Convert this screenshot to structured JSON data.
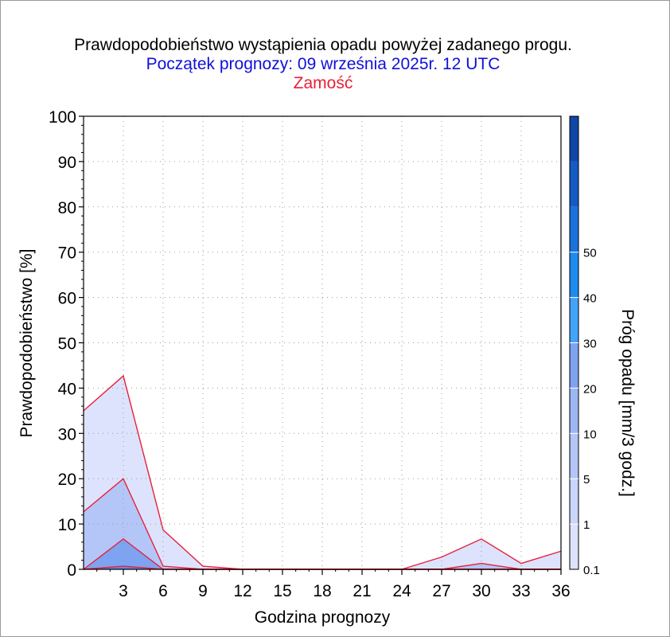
{
  "header": {
    "title": "Prawdopodobieństwo wystąpienia opadu powyżej zadanego progu.",
    "subtitle": "Początek prognozy: 09 września 2025r. 12 UTC",
    "location": "Zamość",
    "title_color": "#000000",
    "subtitle_color": "#1010d8",
    "location_color": "#e8203a"
  },
  "chart_data": {
    "type": "area",
    "xlabel": "Godzina prognozy",
    "ylabel": "Prawdopodobieństwo [%]",
    "xlim": [
      0,
      36
    ],
    "ylim": [
      0,
      100
    ],
    "x": [
      0,
      3,
      6,
      9,
      12,
      15,
      18,
      21,
      24,
      27,
      30,
      33,
      36
    ],
    "x_tick_labels": [
      "3",
      "6",
      "9",
      "12",
      "15",
      "18",
      "21",
      "24",
      "27",
      "30",
      "33",
      "36"
    ],
    "x_tick_values": [
      3,
      6,
      9,
      12,
      15,
      18,
      21,
      24,
      27,
      30,
      33,
      36
    ],
    "y_ticks": [
      0,
      10,
      20,
      30,
      40,
      50,
      60,
      70,
      80,
      90,
      100
    ],
    "grid": true,
    "series": [
      {
        "threshold": 0.1,
        "color": "#dde3fc",
        "values": [
          35,
          42.7,
          8.7,
          0.7,
          0,
          0,
          0,
          0,
          0,
          2.7,
          6.7,
          1.3,
          4
        ]
      },
      {
        "threshold": 1,
        "color": "#b4c6f8",
        "values": [
          12.7,
          20,
          0.7,
          0,
          0,
          0,
          0,
          0,
          0,
          0,
          1.3,
          0,
          0
        ]
      },
      {
        "threshold": 5,
        "color": "#7ea3f0",
        "values": [
          0,
          6.7,
          0,
          0,
          0,
          0,
          0,
          0,
          0,
          0,
          0,
          0,
          0
        ]
      },
      {
        "threshold": 10,
        "color": "#5b8de8",
        "values": [
          0,
          0.7,
          0,
          0,
          0,
          0,
          0,
          0,
          0,
          0,
          0,
          0,
          0
        ]
      }
    ],
    "line_color": "#e8203a",
    "colorbar": {
      "label": "Próg opadu [mm/3 godz.]",
      "tick_labels": [
        "0.1",
        "1",
        "5",
        "10",
        "20",
        "30",
        "40",
        "50"
      ],
      "bands": [
        "#dde3fc",
        "#c9d5fa",
        "#b4c6f8",
        "#9db7f5",
        "#7ea3f0",
        "#43a3f8",
        "#1c8cf0",
        "#1a72de",
        "#155bc6",
        "#0f46a8"
      ]
    }
  }
}
